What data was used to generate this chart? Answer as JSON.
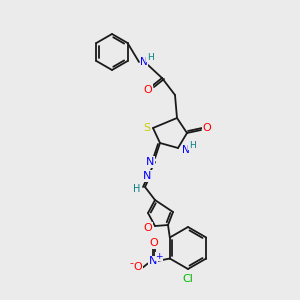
{
  "bg_color": "#ebebeb",
  "bond_color": "#1a1a1a",
  "atom_colors": {
    "O": "#ff0000",
    "N": "#0000ff",
    "S": "#cccc00",
    "Cl": "#00bb00",
    "H": "#008080",
    "C": "#1a1a1a"
  },
  "figsize": [
    3.0,
    3.0
  ],
  "dpi": 100
}
